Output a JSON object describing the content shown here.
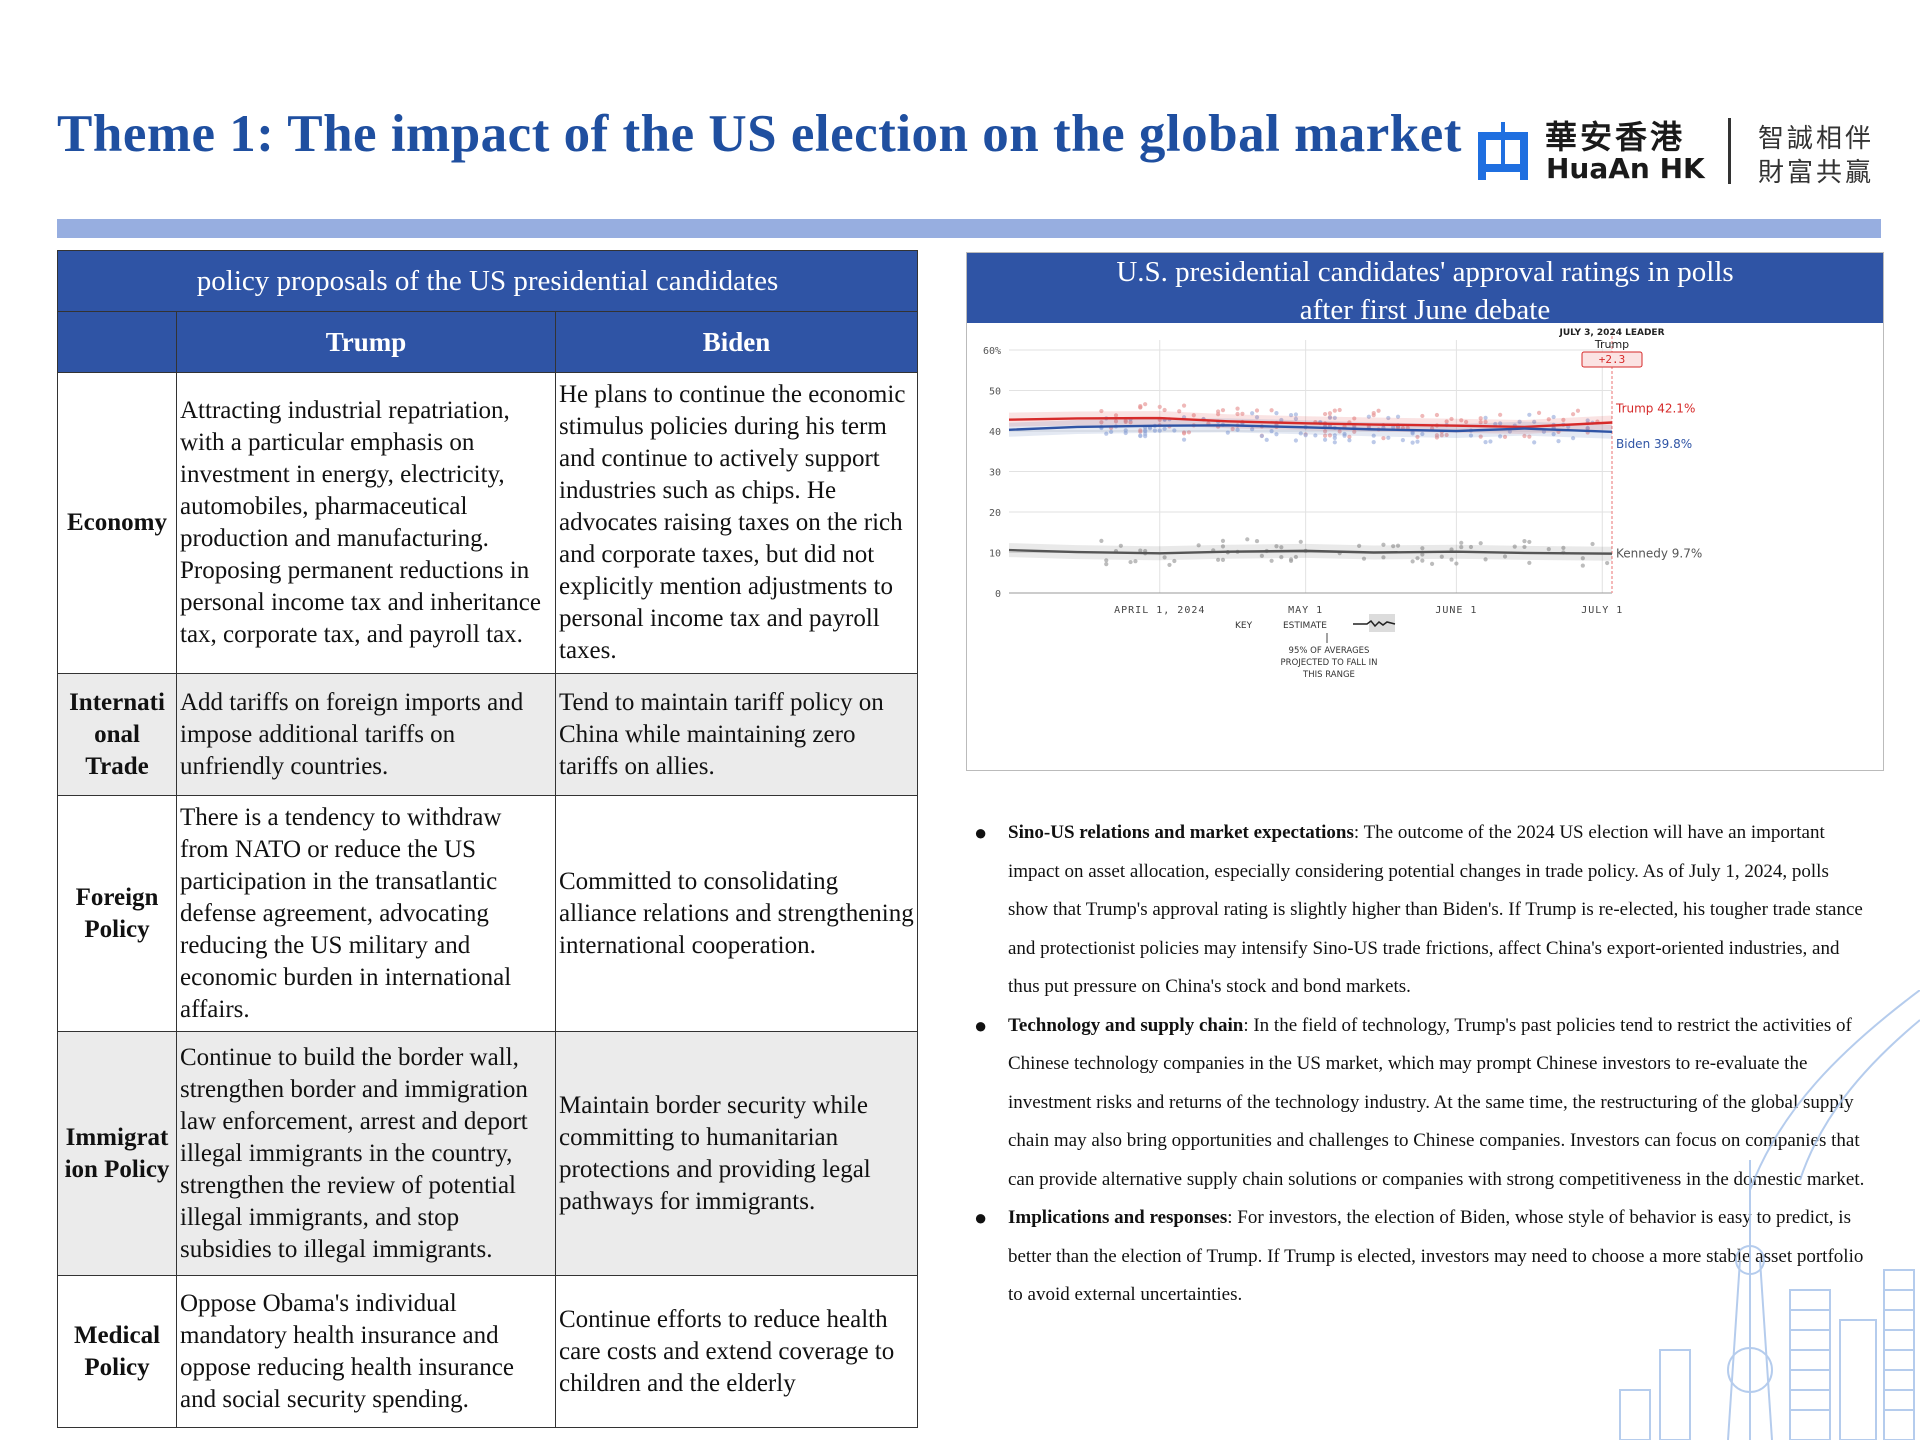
{
  "header": {
    "title": "Theme 1: The impact of the US election on the global market",
    "logo": {
      "brand_cn": "華安香港",
      "brand_en": "HuaAn HK",
      "slogan_line1": "智誠相伴",
      "slogan_line2": "財富共贏",
      "icon": "huaan-logo-icon",
      "color": "#1f6fe0"
    },
    "accent_color": "#1f4fa0",
    "bar_color": "#97aee0"
  },
  "policy_table": {
    "caption": "policy proposals of the US presidential candidates",
    "columns": [
      "",
      "Trump",
      "Biden"
    ],
    "rows": [
      {
        "label": "Economy",
        "trump": "Attracting industrial repatriation, with a particular emphasis on investment in energy, electricity, automobiles, pharmaceutical production and manufacturing. Proposing permanent reductions in personal income tax and inheritance tax, corporate tax, and payroll tax.",
        "biden": "He plans to continue the economic stimulus policies during his term and continue to actively support industries such as chips. He advocates raising taxes on the rich and corporate taxes, but did not explicitly mention adjustments to personal income tax and payroll taxes."
      },
      {
        "label": "International Trade",
        "label_l1": "Internati",
        "label_l2": "onal",
        "label_l3": "Trade",
        "trump": "Add tariffs on foreign imports and impose additional tariffs on unfriendly countries.",
        "biden": "Tend to maintain tariff policy on China while maintaining zero tariffs on allies."
      },
      {
        "label": "Foreign Policy",
        "label_l1": "Foreign",
        "label_l2": "Policy",
        "trump": "There is a tendency to withdraw from NATO or reduce the US participation in the transatlantic defense agreement, advocating reducing the US military and economic burden in international affairs.",
        "biden": "Committed to consolidating alliance relations and strengthening international cooperation."
      },
      {
        "label": "Immigration Policy",
        "label_l1": "Immigrat",
        "label_l2": "ion Policy",
        "trump": "Continue to build the border wall, strengthen border and immigration law enforcement, arrest and deport illegal immigrants in the country, strengthen the review of potential illegal immigrants, and stop subsidies to illegal immigrants.",
        "biden": "Maintain border security while committing to humanitarian protections and providing legal pathways for immigrants."
      },
      {
        "label": "Medical Policy",
        "label_l1": "Medical",
        "label_l2": "Policy",
        "trump": "Oppose Obama's individual mandatory health insurance and oppose reducing health insurance and social security spending.",
        "biden": "Continue efforts to reduce health care costs and extend coverage to children and the elderly"
      }
    ]
  },
  "chart_panel": {
    "title_line1": "U.S. presidential candidates' approval ratings in polls",
    "title_line2": "after first June debate"
  },
  "chart_data": {
    "type": "line",
    "x_tick_labels": [
      "APRIL 1, 2024",
      "MAY 1",
      "JUNE 1",
      "JULY 1"
    ],
    "y_tick_labels": [
      "60%",
      "50",
      "40",
      "30",
      "20",
      "10",
      "0"
    ],
    "ylim": [
      0,
      60
    ],
    "xlim": [
      "2024-03-01",
      "2024-07-03"
    ],
    "grid": true,
    "leader_label": "JULY 3, 2024 LEADER",
    "leader_name": "Trump",
    "leader_margin": "+2.3",
    "series": [
      {
        "name": "Trump",
        "end_label": "Trump 42.1%",
        "color": "#d62a2a",
        "x": [
          "2024-03-01",
          "2024-03-15",
          "2024-04-01",
          "2024-04-15",
          "2024-05-01",
          "2024-05-15",
          "2024-06-01",
          "2024-06-15",
          "2024-07-03"
        ],
        "values": [
          42.8,
          43.1,
          43.2,
          42.4,
          41.9,
          41.6,
          41.3,
          41.0,
          42.1
        ]
      },
      {
        "name": "Biden",
        "end_label": "Biden 39.8%",
        "color": "#2f54a5",
        "x": [
          "2024-03-01",
          "2024-03-15",
          "2024-04-01",
          "2024-04-15",
          "2024-05-01",
          "2024-05-15",
          "2024-06-01",
          "2024-06-15",
          "2024-07-03"
        ],
        "values": [
          40.3,
          41.0,
          41.3,
          41.4,
          40.9,
          40.4,
          40.0,
          40.6,
          39.8
        ]
      },
      {
        "name": "Kennedy",
        "end_label": "Kennedy 9.7%",
        "color": "#555555",
        "x": [
          "2024-03-01",
          "2024-03-15",
          "2024-04-01",
          "2024-04-15",
          "2024-05-01",
          "2024-05-15",
          "2024-06-01",
          "2024-06-15",
          "2024-07-03"
        ],
        "values": [
          10.6,
          10.1,
          9.8,
          10.2,
          10.4,
          10.0,
          10.2,
          9.9,
          9.7
        ]
      }
    ],
    "key": {
      "key_label": "KEY",
      "estimate_label": "ESTIMATE",
      "band_label_l1": "95% OF AVERAGES",
      "band_label_l2": "PROJECTED TO FALL IN",
      "band_label_l3": "THIS RANGE"
    }
  },
  "bullets": [
    {
      "heading": "Sino-US relations and market expectations",
      "text": ": The outcome of the 2024 US election will have an important impact on asset allocation, especially considering potential changes in trade policy. As of July 1, 2024, polls show that Trump's approval rating is slightly higher than Biden's. If Trump is re-elected, his tougher trade stance and protectionist policies may intensify Sino-US trade frictions, affect China's export-oriented industries, and thus put pressure on China's stock and bond markets."
    },
    {
      "heading": "Technology and supply chain",
      "text": ": In the field of technology, Trump's past policies tend to restrict the activities of Chinese technology companies in the US market, which may prompt Chinese investors to re-evaluate the investment risks and returns of the technology industry. At the same time, the restructuring of the global supply chain may also bring opportunities and challenges to Chinese companies. Investors can focus on companies that can provide alternative supply chain solutions or companies with strong competitiveness in the domestic market."
    },
    {
      "heading": "Implications and responses",
      "text": ": For investors, the election of Biden, whose style of behavior is easy to predict, is better than the election of Trump. If Trump is elected, investors may need to choose a more stable asset portfolio to avoid external uncertainties."
    }
  ],
  "decoration": {
    "icon": "city-skyline-icon",
    "color": "#a9c4ea"
  }
}
